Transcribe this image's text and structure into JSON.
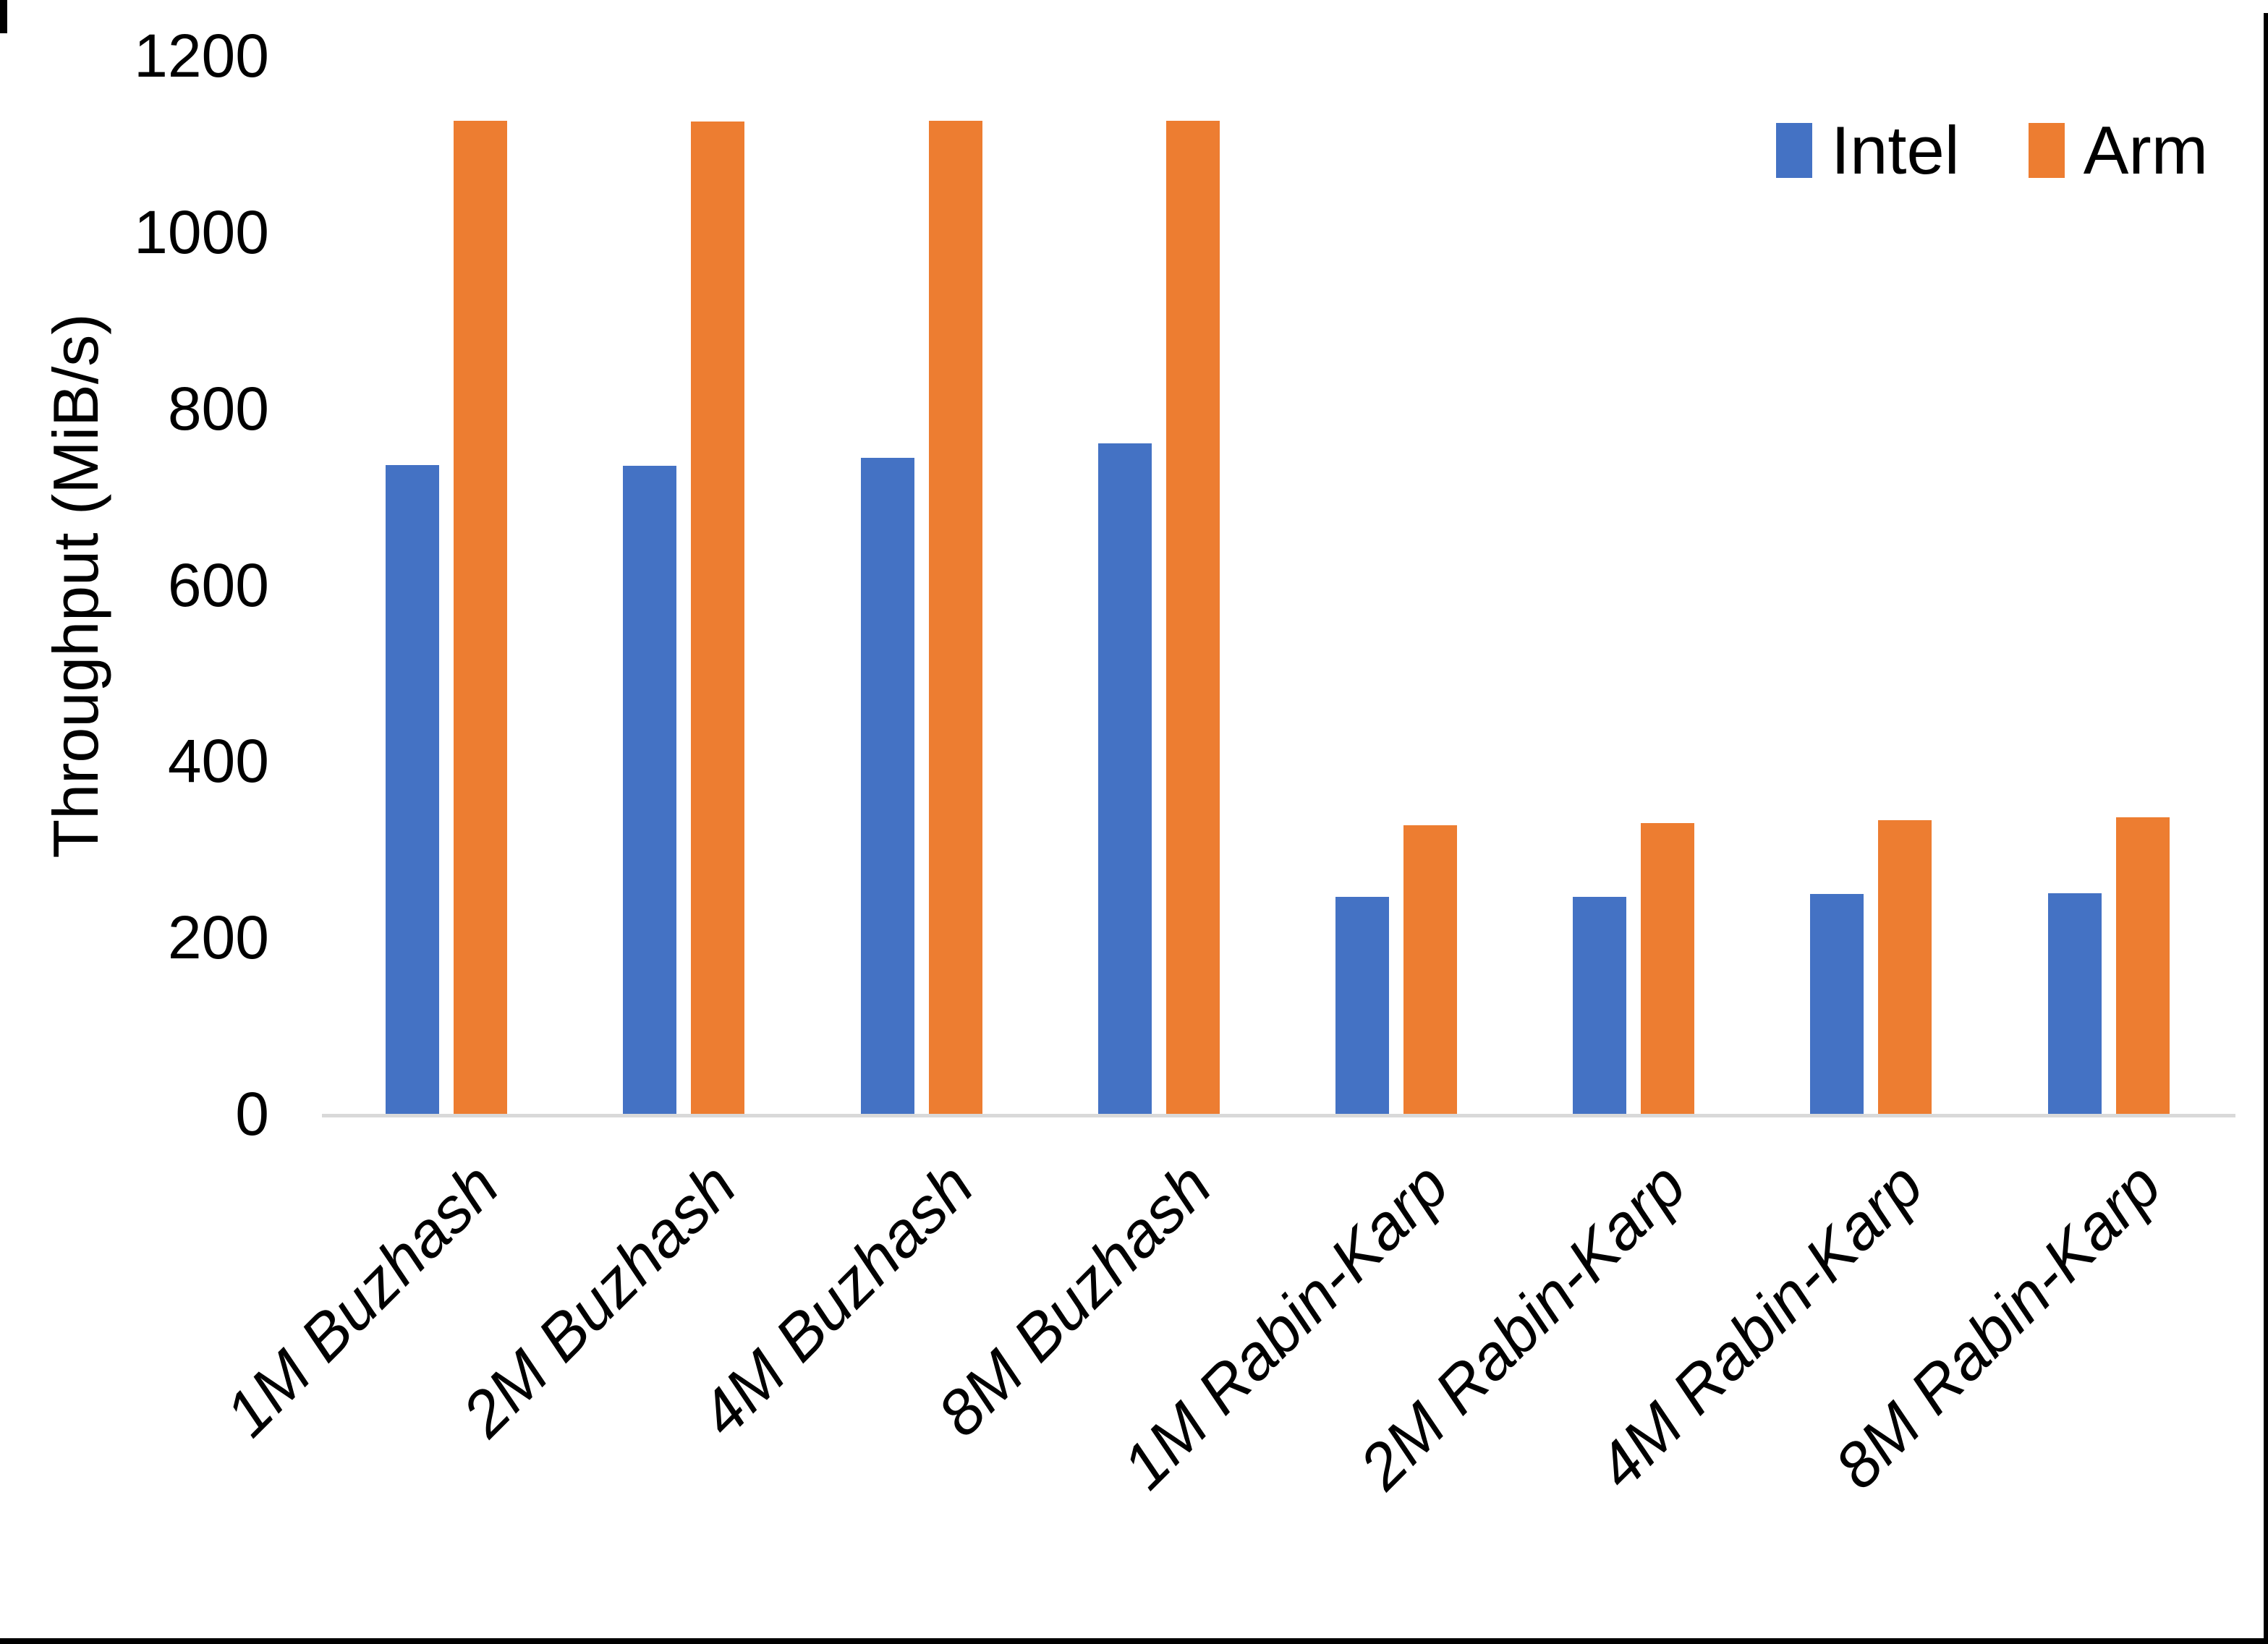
{
  "chart_data": {
    "type": "bar",
    "title": "",
    "ylabel": "Throughput (MiB/s)",
    "xlabel": "",
    "categories": [
      "1M Buzhash",
      "2M Buzhash",
      "4M Buzhash",
      "8M Buzhash",
      "1M Rabin-Karp",
      "2M Rabin-Karp",
      "4M Rabin-Karp",
      "8M Rabin-Karp"
    ],
    "series": [
      {
        "name": "Intel",
        "color": "#4472C4",
        "values": [
          736,
          735,
          744,
          760,
          246,
          246,
          249,
          250
        ]
      },
      {
        "name": "Arm",
        "color": "#ED7D31",
        "values": [
          1126,
          1125,
          1126,
          1126,
          327,
          330,
          333,
          336
        ]
      }
    ],
    "y_ticks": [
      0,
      200,
      400,
      600,
      800,
      1000,
      1200
    ],
    "ylim": [
      0,
      1200
    ],
    "grid": false,
    "legend_position": "top-right"
  },
  "colors": {
    "background": "#FFFFFF",
    "axis_line": "#D9D9D9",
    "text": "#000000",
    "page_border": "#000000"
  }
}
